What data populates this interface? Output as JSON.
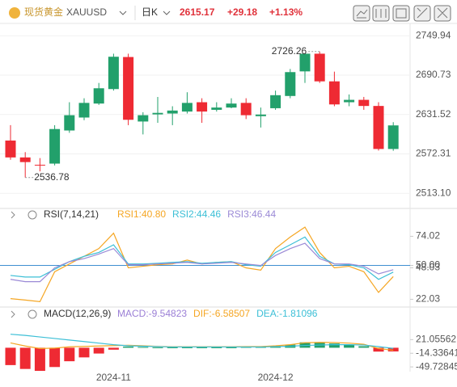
{
  "header": {
    "title": "现货黄金",
    "symbol": "XAUUSD",
    "period": "日K",
    "price": "2615.17",
    "change": "+29.18",
    "change_pct": "+1.13%"
  },
  "chart_data": [
    {
      "type": "candlestick",
      "up_color": "#22a06b",
      "down_color": "#ee2a33",
      "open": [
        2592.4,
        2567,
        2556,
        2557.7,
        2607.5,
        2627,
        2648,
        2669.8,
        2718,
        2621,
        2631.7,
        2633,
        2636,
        2650,
        2638.6,
        2642,
        2649,
        2629,
        2641,
        2659.4,
        2696.4,
        2723,
        2681.4,
        2650,
        2653.6,
        2644.4,
        2579.7
      ],
      "high": [
        2615.5,
        2575,
        2566,
        2615.5,
        2650,
        2656,
        2679,
        2723,
        2723,
        2635,
        2658,
        2644,
        2665,
        2656,
        2650,
        2656,
        2656,
        2642,
        2667.5,
        2700,
        2722,
        2726.26,
        2696,
        2661.7,
        2658,
        2650,
        2620
      ],
      "low": [
        2563.5,
        2536.78,
        2546,
        2555,
        2604,
        2623,
        2646,
        2667.5,
        2615.5,
        2601.6,
        2619,
        2615.5,
        2633,
        2619,
        2636,
        2641,
        2624.7,
        2612,
        2638.6,
        2656,
        2679,
        2679,
        2644,
        2644,
        2638.6,
        2577.3,
        2577
      ],
      "close": [
        2567,
        2560,
        2555,
        2609.7,
        2630.5,
        2649,
        2671,
        2718.4,
        2623.6,
        2630.5,
        2634,
        2637.5,
        2649,
        2636,
        2642,
        2648,
        2630.5,
        2631.5,
        2660.6,
        2695.3,
        2723,
        2681.4,
        2646.7,
        2653.6,
        2644.4,
        2579.7,
        2615.17
      ],
      "annotations": [
        2726.26,
        2536.78
      ],
      "ylim": [
        2500,
        2760
      ],
      "yticks": [
        2749.94,
        2690.73,
        2631.52,
        2572.31,
        {
          "value": 2513.1,
          "label": "2513.10"
        }
      ],
      "grid": true
    },
    {
      "type": "line",
      "indicator_label": "RSI(7,14,21)",
      "series": [
        {
          "name": "RSI1:40.80",
          "color": "#f5a623",
          "values": [
            22.6,
            21.4,
            20.1,
            44.8,
            51.2,
            57.5,
            63.9,
            76.6,
            48.0,
            49.3,
            50.6,
            51.2,
            54.4,
            51.2,
            52.5,
            53.1,
            48.0,
            46.1,
            63.9,
            73.4,
            81.6,
            60.7,
            48.0,
            49.3,
            44.8,
            27.7,
            40.8
          ]
        },
        {
          "name": "RSI2:44.46",
          "color": "#3cbfd6",
          "values": [
            41.7,
            40.4,
            40.4,
            46.8,
            53.1,
            57.5,
            60.7,
            67.0,
            51.2,
            51.2,
            51.8,
            52.5,
            53.1,
            51.8,
            52.5,
            53.1,
            50.6,
            49.3,
            60.7,
            67.0,
            73.4,
            57.5,
            51.2,
            50.6,
            48.0,
            38.5,
            44.46
          ]
        },
        {
          "name": "RSI3:46.44",
          "color": "#9b8ad6",
          "values": [
            38.5,
            36.6,
            36.6,
            48.0,
            53.1,
            55.6,
            59.4,
            63.9,
            50.6,
            50.6,
            51.2,
            51.8,
            52.5,
            51.2,
            51.8,
            52.5,
            51.2,
            49.9,
            58.2,
            63.9,
            68.3,
            55.6,
            51.2,
            51.2,
            49.3,
            43.0,
            46.44
          ]
        }
      ],
      "hline": 50,
      "hline_color": "#3f8fd0",
      "ylim": [
        17,
        89
      ],
      "yticks": [
        74.02,
        {
          "value": 50,
          "label": "50.00"
        },
        48.03,
        22.03
      ]
    },
    {
      "type": "bar",
      "indicator_label": "MACD(12,26,9)",
      "name": "MACD:-9.54823",
      "name_color": "#9b7fd6",
      "up_color": "#22a06b",
      "down_color": "#ee2a33",
      "categories": [
        null,
        null,
        null,
        null,
        null,
        null,
        null,
        "2024-11",
        null,
        null,
        null,
        null,
        null,
        null,
        null,
        null,
        null,
        null,
        "2024-12",
        null,
        null,
        null,
        null,
        null,
        null,
        null,
        null
      ],
      "values": [
        -45,
        -55,
        -60,
        -50,
        -35,
        -25,
        -15,
        -5,
        3,
        2,
        1,
        1,
        1,
        1,
        1,
        1,
        2,
        2,
        4,
        8,
        14,
        14,
        11,
        8,
        4,
        -10,
        -9.54823
      ],
      "series": [
        {
          "name": "DIF:-6.58507",
          "color": "#f5a623",
          "values": [
            12.5,
            4.5,
            -2,
            -1,
            2.5,
            3.5,
            4.5,
            5.5,
            6.5,
            5,
            3.5,
            2.5,
            2.5,
            2.5,
            2.5,
            2.5,
            3,
            3,
            5,
            8,
            13,
            14,
            13.5,
            12,
            9,
            -2,
            -6.58507
          ]
        },
        {
          "name": "DEA:-1.81096",
          "color": "#3cbfd6",
          "values": [
            35,
            32,
            28,
            24,
            20,
            16,
            12,
            8,
            5,
            4,
            3,
            2,
            2,
            2,
            2,
            2,
            2,
            2,
            3,
            4,
            6,
            7,
            8,
            8,
            7,
            3,
            -1.81096
          ]
        }
      ],
      "ylim": [
        -62,
        70
      ],
      "yticks": [
        21.05562,
        -14.33641,
        -49.72845
      ]
    }
  ]
}
